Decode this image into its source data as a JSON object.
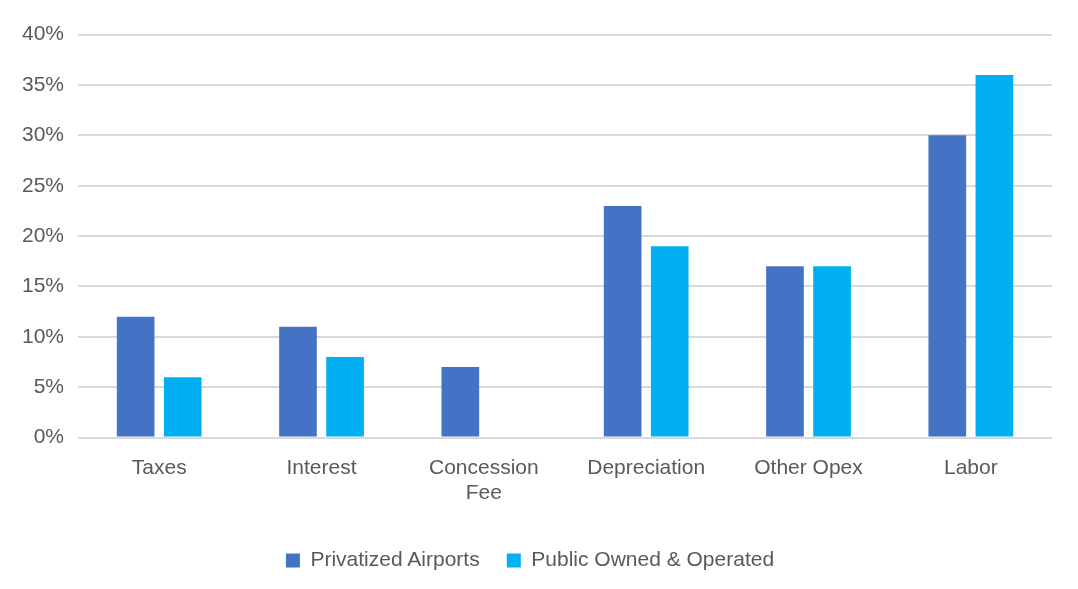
{
  "chart_data": {
    "type": "bar",
    "categories": [
      "Taxes",
      "Interest",
      "Concession Fee",
      "Depreciation",
      "Other Opex",
      "Labor"
    ],
    "series": [
      {
        "name": "Privatized Airports",
        "color": "#4472c4",
        "values": [
          12,
          11,
          7,
          23,
          17,
          30
        ]
      },
      {
        "name": "Public Owned & Operated",
        "color": "#00b0f0",
        "values": [
          6,
          8,
          0,
          19,
          17,
          36
        ]
      }
    ],
    "ylim": [
      0,
      40
    ],
    "yticks": [
      {
        "value": 0,
        "label": "0%"
      },
      {
        "value": 5,
        "label": "5%"
      },
      {
        "value": 10,
        "label": "10%"
      },
      {
        "value": 15,
        "label": "15%"
      },
      {
        "value": 20,
        "label": "20%"
      },
      {
        "value": 25,
        "label": "25%"
      },
      {
        "value": 30,
        "label": "30%"
      },
      {
        "value": 35,
        "label": "35%"
      },
      {
        "value": 40,
        "label": "40%"
      }
    ],
    "grid": "y",
    "legend": "bottom"
  }
}
